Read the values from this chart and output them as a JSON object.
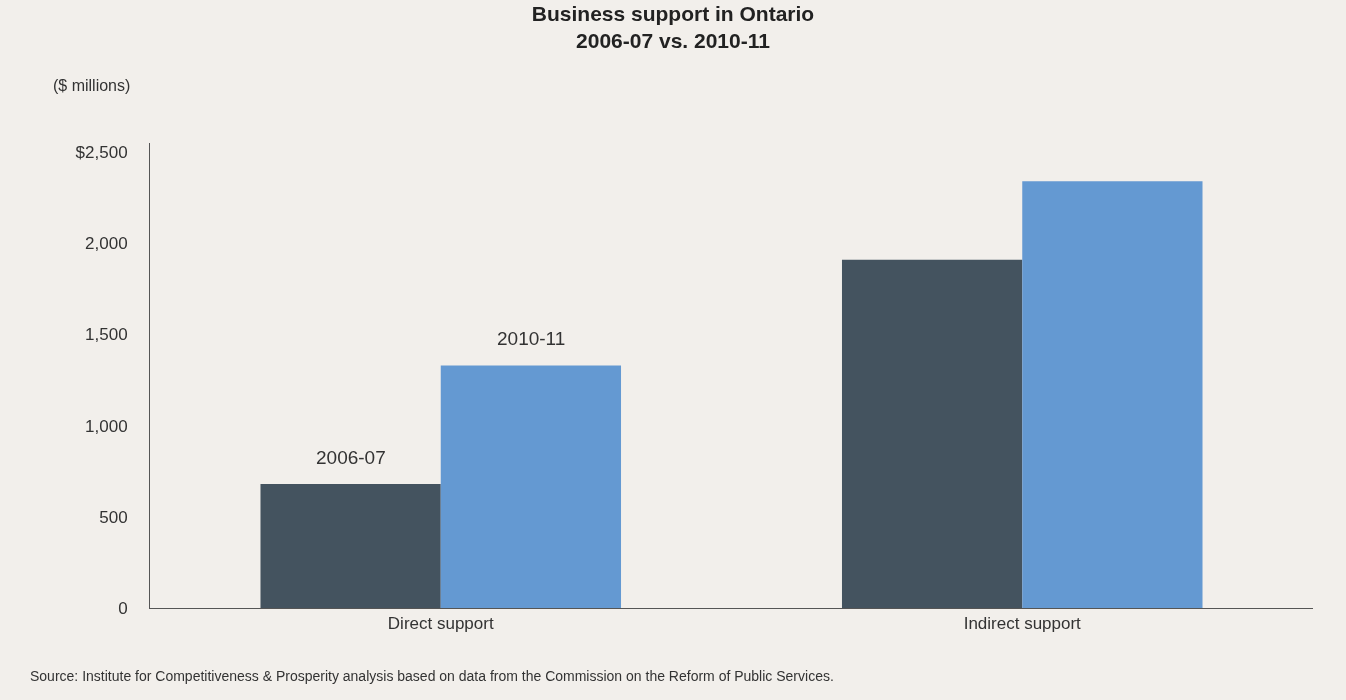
{
  "chart_data": {
    "type": "bar",
    "title": "Business support in Ontario\n2006-07 vs. 2010-11",
    "ylabel": "($ millions)",
    "categories": [
      "Direct support",
      "Indirect support"
    ],
    "series": [
      {
        "name": "2006-07",
        "color": "#44535f",
        "values": [
          680,
          1910
        ]
      },
      {
        "name": "2010-11",
        "color": "#6499d2",
        "values": [
          1330,
          2340
        ]
      }
    ],
    "ylim": [
      0,
      2550
    ],
    "yticks": [
      0,
      500,
      {
        "value": 1000,
        "label": "1,000"
      },
      {
        "value": 1500,
        "label": "1,500"
      },
      {
        "value": 2000,
        "label": "2,000"
      },
      {
        "value": 2500,
        "label": "$2,500"
      }
    ],
    "grid": false,
    "legend": false,
    "annotations": [
      "Source: Institute for Competitiveness & Prosperity analysis based on data from the Commission on the Reform of Public Services."
    ]
  }
}
